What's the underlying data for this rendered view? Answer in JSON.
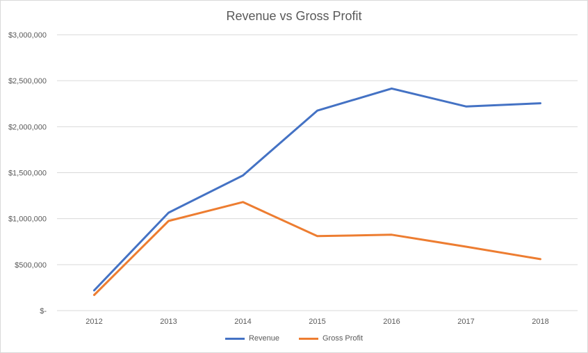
{
  "chart_data": {
    "type": "line",
    "title": "Revenue vs Gross Profit",
    "categories": [
      "2012",
      "2013",
      "2014",
      "2015",
      "2016",
      "2017",
      "2018"
    ],
    "series": [
      {
        "name": "Revenue",
        "color": "#4472c4",
        "values": [
          220000,
          1065000,
          1470000,
          2175000,
          2415000,
          2220000,
          2255000
        ]
      },
      {
        "name": "Gross Profit",
        "color": "#ed7d31",
        "values": [
          170000,
          975000,
          1180000,
          810000,
          825000,
          695000,
          560000
        ]
      }
    ],
    "ylim": [
      0,
      3000000
    ],
    "yticks": [
      {
        "value": 0,
        "label": "$-"
      },
      {
        "value": 500000,
        "label": "$500,000"
      },
      {
        "value": 1000000,
        "label": "$1,000,000"
      },
      {
        "value": 1500000,
        "label": "$1,500,000"
      },
      {
        "value": 2000000,
        "label": "$2,000,000"
      },
      {
        "value": 2500000,
        "label": "$2,500,000"
      },
      {
        "value": 3000000,
        "label": "$3,000,000"
      }
    ],
    "grid": true,
    "legend_position": "bottom"
  }
}
